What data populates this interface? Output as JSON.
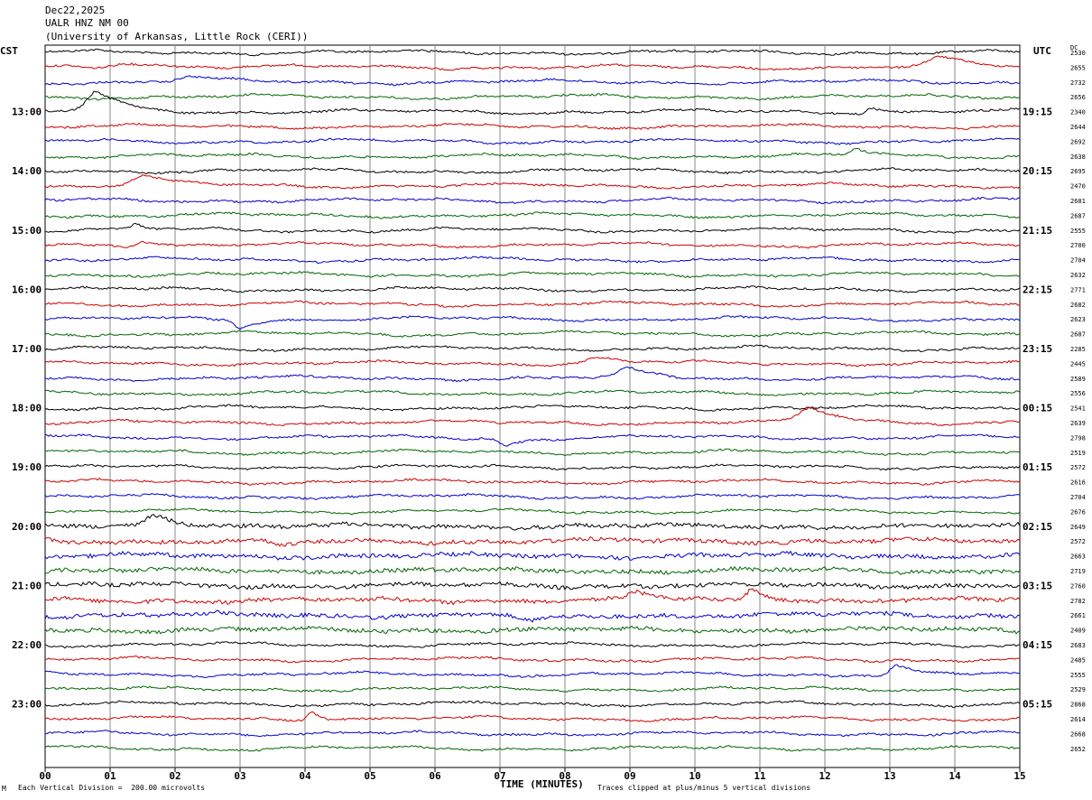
{
  "header": {
    "date": "Dec22,2025",
    "station": "UALR HNZ NM 00",
    "network": "(University of Arkansas, Little Rock (CERI))"
  },
  "left_timezone": "CST",
  "right_timezone": "UTC",
  "dc_header": "DC",
  "footer": {
    "corner_mark": "M",
    "scale_note": "Each Vertical Division =  200.00 microvolts",
    "clip_note": "Traces clipped at plus/minus 5 vertical divisions"
  },
  "colors": {
    "cycle": [
      "#000000",
      "#cc0000",
      "#0000cc",
      "#006600"
    ],
    "grid": "#888888"
  },
  "chart_data": {
    "type": "line",
    "xlabel": "TIME (MINUTES)",
    "xlim": [
      0,
      15
    ],
    "x_ticks": [
      "00",
      "01",
      "02",
      "03",
      "04",
      "05",
      "06",
      "07",
      "08",
      "09",
      "10",
      "11",
      "12",
      "13",
      "14",
      "15"
    ],
    "left_time_labels": [
      "13:00",
      "14:00",
      "15:00",
      "16:00",
      "17:00",
      "18:00",
      "19:00",
      "20:00",
      "21:00",
      "22:00",
      "23:00"
    ],
    "right_time_labels": [
      "19:15",
      "20:15",
      "21:15",
      "22:15",
      "23:15",
      "00:15",
      "01:15",
      "02:15",
      "03:15",
      "04:15",
      "05:15"
    ],
    "first_hour_label_row": 4,
    "rows_per_hour": 4,
    "trace_count": 48,
    "dc_offsets": [
      2530,
      2655,
      2732,
      2656,
      2340,
      2644,
      2692,
      2638,
      2695,
      2470,
      2681,
      2687,
      2555,
      2700,
      2704,
      2632,
      2771,
      2682,
      2623,
      2687,
      2285,
      2445,
      2589,
      2556,
      2541,
      2639,
      2798,
      2519,
      2572,
      2616,
      2704,
      2676,
      2649,
      2572,
      2663,
      2719,
      2760,
      2782,
      2661,
      2409,
      2683,
      2485,
      2555,
      2529,
      2868,
      2614,
      2668,
      2652
    ],
    "events": [
      {
        "row": 4,
        "minute": 0.8,
        "amplitude": 22,
        "width": 0.5
      },
      {
        "row": 4,
        "minute": 12.7,
        "amplitude": 6,
        "width": 0.2
      },
      {
        "row": 1,
        "minute": 1.3,
        "amplitude": 6,
        "width": 0.8
      },
      {
        "row": 1,
        "minute": 13.8,
        "amplitude": 10,
        "width": 0.6
      },
      {
        "row": 2,
        "minute": 2.2,
        "amplitude": 5,
        "width": 0.6
      },
      {
        "row": 7,
        "minute": 12.5,
        "amplitude": 8,
        "width": 0.3
      },
      {
        "row": 9,
        "minute": 1.5,
        "amplitude": 10,
        "width": 0.6
      },
      {
        "row": 12,
        "minute": 1.4,
        "amplitude": 6,
        "width": 0.2
      },
      {
        "row": 13,
        "minute": 1.5,
        "amplitude": 6,
        "width": 0.3
      },
      {
        "row": 18,
        "minute": 3.0,
        "amplitude": -10,
        "width": 0.3
      },
      {
        "row": 21,
        "minute": 8.5,
        "amplitude": 6,
        "width": 0.6
      },
      {
        "row": 22,
        "minute": 9.0,
        "amplitude": 10,
        "width": 0.5
      },
      {
        "row": 25,
        "minute": 11.8,
        "amplitude": 16,
        "width": 0.6
      },
      {
        "row": 26,
        "minute": 7.1,
        "amplitude": -8,
        "width": 0.4
      },
      {
        "row": 32,
        "minute": 1.7,
        "amplitude": 14,
        "width": 0.5
      },
      {
        "row": 33,
        "minute": 3.6,
        "amplitude": -6,
        "width": 0.5
      },
      {
        "row": 37,
        "minute": 10.9,
        "amplitude": 14,
        "width": 0.3
      },
      {
        "row": 37,
        "minute": 9.1,
        "amplitude": 8,
        "width": 0.4
      },
      {
        "row": 38,
        "minute": 7.5,
        "amplitude": -8,
        "width": 0.6
      },
      {
        "row": 42,
        "minute": 13.1,
        "amplitude": 10,
        "width": 0.3
      },
      {
        "row": 45,
        "minute": 4.1,
        "amplitude": 10,
        "width": 0.2
      }
    ]
  }
}
